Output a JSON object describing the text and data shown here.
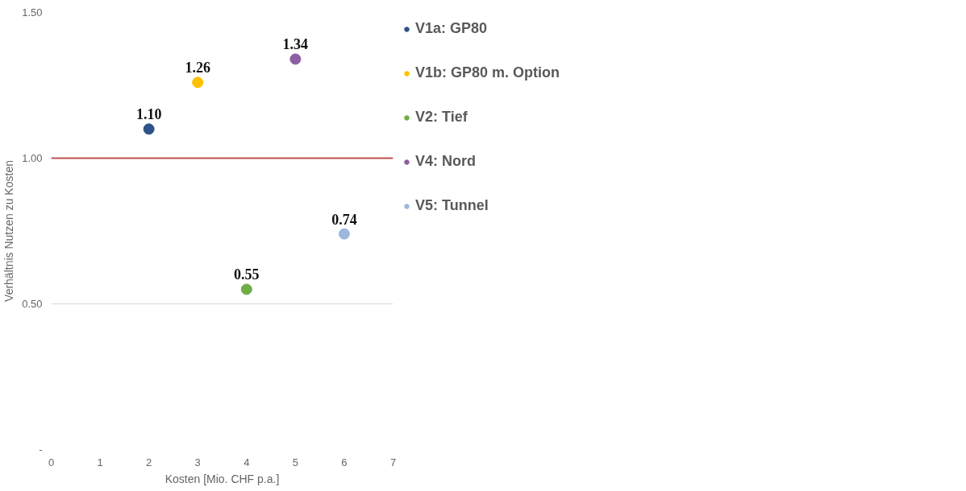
{
  "chart_data": {
    "type": "scatter",
    "xlabel": "Kosten [Mio. CHF p.a.]",
    "ylabel": "Verhältnis Nutzen zu Kosten",
    "xlim": [
      0,
      7
    ],
    "xticks": [
      0,
      1,
      2,
      3,
      4,
      5,
      6,
      7
    ],
    "ylim": [
      0,
      1.5
    ],
    "yticks": [
      {
        "value": 0,
        "label": "-"
      },
      {
        "value": 0.5,
        "label": "0.50"
      },
      {
        "value": 1.0,
        "label": "1.00"
      },
      {
        "value": 1.5,
        "label": "1.50"
      }
    ],
    "grid": "y",
    "legend": "right",
    "marker": "circle",
    "series": [
      {
        "name": "V1a: GP80",
        "color": "#2e5386",
        "x": [
          2
        ],
        "values": [
          1.1
        ],
        "value_labels": [
          "1.10"
        ]
      },
      {
        "name": "V1b: GP80 m. Option",
        "color": "#ffc000",
        "x": [
          3
        ],
        "values": [
          1.26
        ],
        "value_labels": [
          "1.26"
        ]
      },
      {
        "name": "V2: Tief",
        "color": "#70ad47",
        "x": [
          4
        ],
        "values": [
          0.55
        ],
        "value_labels": [
          "0.55"
        ]
      },
      {
        "name": "V4: Nord",
        "color": "#8e5ea2",
        "x": [
          5
        ],
        "values": [
          1.34
        ],
        "value_labels": [
          "1.34"
        ]
      },
      {
        "name": "V5: Tunnel",
        "color": "#9db8de",
        "x": [
          6
        ],
        "values": [
          0.74
        ],
        "value_labels": [
          "0.74"
        ]
      }
    ],
    "ref_lines": [
      {
        "axis": "y",
        "value": 1.0,
        "color": "#c0504d"
      }
    ]
  }
}
